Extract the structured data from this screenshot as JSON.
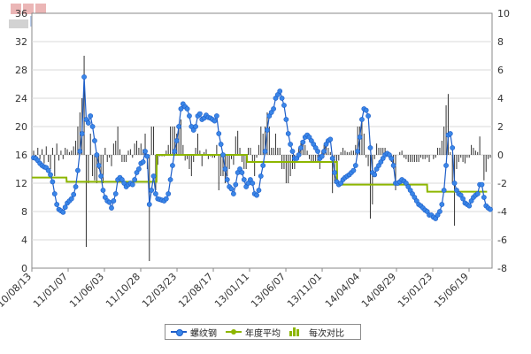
{
  "colors": {
    "price_line": "#1e5ec8",
    "price_marker": "#3a86e8",
    "avg_line": "#8db600",
    "diff_bar": "#333333",
    "grid": "#d9d9d9",
    "axis": "#888888"
  },
  "legend": {
    "price": "螺纹钢",
    "avg": "年度平均",
    "diff": "每次对比"
  },
  "chart_data": {
    "type": "line",
    "grid": true,
    "legend_position": "bottom",
    "y_left": {
      "range": [
        0,
        36
      ],
      "ticks": [
        "0",
        "4",
        "8",
        "12",
        "16",
        "20",
        "24",
        "28",
        "32",
        "36"
      ]
    },
    "y_right": {
      "range": [
        -8,
        10
      ],
      "ticks": [
        "-8",
        "-6",
        "-4",
        "-2",
        "0",
        "2",
        "4",
        "6",
        "8",
        "10"
      ]
    },
    "x_ticks": [
      "10/08/13",
      "11/01/07",
      "11/06/03",
      "11/10/28",
      "12/03/23",
      "12/08/17",
      "13/01/11",
      "13/06/07",
      "13/11/01",
      "14/04/04",
      "14/08/29",
      "15/01/23",
      "15/06/19"
    ],
    "series": [
      {
        "name": "螺纹钢",
        "axis": "left",
        "values": [
          15.6,
          15.5,
          15.2,
          14.8,
          14.5,
          14.3,
          14.2,
          13.8,
          13.2,
          12.2,
          10.5,
          9.0,
          8.3,
          8.1,
          7.9,
          8.6,
          9.2,
          9.5,
          9.8,
          10.4,
          11.5,
          13.8,
          16.5,
          19.0,
          27.0,
          21.0,
          20.5,
          21.5,
          20.0,
          18.0,
          16.0,
          14.5,
          13.0,
          11.0,
          10.0,
          9.5,
          9.3,
          8.5,
          9.5,
          10.5,
          12.5,
          12.8,
          12.5,
          12.0,
          11.5,
          11.8,
          12.0,
          11.8,
          12.5,
          13.5,
          14.0,
          14.8,
          15.0,
          16.5,
          15.8,
          9.0,
          11.0,
          13.0,
          10.5,
          9.8,
          9.7,
          9.6,
          9.5,
          9.8,
          10.5,
          12.5,
          14.5,
          16.5,
          18.0,
          20.0,
          22.5,
          23.2,
          22.8,
          22.5,
          21.5,
          20.0,
          19.5,
          20.0,
          21.5,
          21.8,
          21.0,
          21.2,
          21.6,
          21.3,
          21.2,
          21.0,
          20.8,
          21.5,
          19.0,
          17.5,
          16.0,
          14.0,
          12.5,
          11.5,
          11.2,
          10.5,
          11.8,
          13.5,
          14.0,
          13.5,
          12.5,
          11.5,
          12.0,
          12.5,
          12.0,
          10.5,
          10.3,
          11.0,
          13.0,
          14.5,
          16.5,
          19.5,
          21.5,
          22.0,
          22.5,
          24.0,
          24.5,
          25.0,
          24.0,
          23.0,
          21.0,
          19.0,
          17.5,
          16.5,
          15.5,
          15.5,
          16.0,
          17.0,
          17.8,
          18.5,
          18.8,
          18.5,
          18.0,
          17.5,
          17.0,
          16.5,
          15.5,
          15.8,
          16.5,
          17.5,
          18.0,
          18.2,
          15.5,
          13.5,
          12.2,
          11.8,
          12.0,
          12.5,
          12.8,
          13.0,
          13.2,
          13.5,
          13.8,
          14.5,
          16.5,
          18.5,
          21.0,
          22.5,
          22.3,
          21.5,
          17.0,
          13.5,
          13.2,
          14.0,
          14.5,
          15.0,
          15.5,
          16.0,
          16.2,
          16.0,
          15.5,
          14.5,
          12.0,
          12.0,
          12.2,
          12.5,
          12.3,
          12.0,
          11.5,
          11.0,
          10.5,
          10.0,
          9.5,
          9.0,
          8.8,
          8.5,
          8.2,
          8.0,
          7.5,
          7.5,
          7.2,
          7.0,
          7.5,
          8.0,
          9.0,
          11.0,
          14.5,
          18.8,
          19.0,
          17.0,
          12.0,
          11.0,
          10.5,
          10.3,
          9.8,
          9.2,
          9.0,
          8.8,
          9.5,
          10.0,
          10.3,
          10.5,
          11.8,
          11.8,
          10.0,
          8.8,
          8.5,
          8.3
        ]
      },
      {
        "name": "年度平均",
        "axis": "left",
        "steps": [
          {
            "x0": "10/08/13",
            "x1": "10/12/31",
            "value": 12.8
          },
          {
            "x0": "11/01/01",
            "x1": "11/12/31",
            "value": 12.2
          },
          {
            "x0": "12/01/01",
            "x1": "12/12/31",
            "value": 16.0
          },
          {
            "x0": "13/01/01",
            "x1": "13/12/31",
            "value": 15.0
          },
          {
            "x0": "14/01/01",
            "x1": "14/12/31",
            "value": 11.8
          },
          {
            "x0": "15/01/01",
            "x1": "15/08/31",
            "value": 10.8
          }
        ]
      },
      {
        "name": "每次对比",
        "axis": "right",
        "type": "bar",
        "values": [
          0.3,
          -0.4,
          0.5,
          -0.3,
          0.4,
          -0.6,
          0.6,
          -0.5,
          -1.0,
          0.5,
          -1.5,
          0.8,
          -0.4,
          0.3,
          -0.3,
          0.5,
          0.4,
          0.2,
          0.3,
          0.6,
          1.0,
          2.0,
          3.0,
          4.0,
          7.0,
          -6.5,
          -2.0,
          1.5,
          -1.5,
          -1.8,
          -2.0,
          -1.0,
          -1.5,
          -2.0,
          0.5,
          -0.5,
          -0.2,
          -0.8,
          0.8,
          1.0,
          2.0,
          0.4,
          -0.5,
          -0.5,
          -0.5,
          0.3,
          0.4,
          -0.2,
          0.8,
          1.0,
          0.5,
          0.8,
          0.4,
          1.5,
          -1.0,
          -7.5,
          2.0,
          2.0,
          -2.5,
          -0.7,
          -0.1,
          -0.1,
          -0.1,
          0.3,
          0.7,
          2.0,
          2.0,
          2.0,
          1.5,
          2.0,
          2.5,
          0.7,
          -0.4,
          -0.3,
          -1.0,
          -1.5,
          -0.5,
          0.5,
          1.5,
          0.3,
          -0.8,
          0.2,
          0.4,
          -0.3,
          -0.1,
          -0.2,
          -0.2,
          0.7,
          -2.5,
          -1.5,
          -1.5,
          -2.0,
          -1.5,
          -1.0,
          -0.3,
          -0.7,
          1.3,
          1.7,
          0.5,
          -0.5,
          -1.0,
          -1.0,
          0.5,
          0.5,
          -0.5,
          -1.5,
          -0.2,
          0.7,
          2.0,
          1.5,
          2.0,
          3.0,
          2.0,
          0.5,
          0.5,
          1.5,
          0.5,
          0.5,
          -1.0,
          -1.0,
          -2.0,
          -2.0,
          -1.5,
          -1.0,
          -1.0,
          0.0,
          0.5,
          1.0,
          0.8,
          0.7,
          0.3,
          -0.3,
          -0.5,
          -0.5,
          -0.5,
          -0.5,
          -1.0,
          0.3,
          0.7,
          1.0,
          0.5,
          0.2,
          -2.7,
          -2.0,
          -1.3,
          -0.4,
          0.2,
          0.5,
          0.3,
          0.2,
          0.2,
          0.3,
          0.3,
          0.7,
          2.0,
          2.0,
          2.5,
          1.5,
          -0.2,
          -0.8,
          -4.5,
          -3.5,
          -0.3,
          0.8,
          0.5,
          0.5,
          0.5,
          0.5,
          0.2,
          -0.2,
          -0.5,
          -1.0,
          -2.5,
          0.0,
          0.2,
          0.3,
          -0.2,
          -0.3,
          -0.5,
          -0.5,
          -0.5,
          -0.5,
          -0.5,
          -0.5,
          -0.2,
          -0.3,
          -0.3,
          -0.2,
          -0.5,
          0.0,
          -0.3,
          -0.2,
          0.5,
          0.5,
          1.0,
          2.0,
          3.5,
          4.3,
          0.2,
          -2.0,
          -5.0,
          -1.0,
          -0.5,
          -0.2,
          -0.5,
          -0.6,
          -0.2,
          -0.2,
          0.7,
          0.5,
          0.3,
          0.2,
          1.3,
          0.0,
          -1.8,
          -1.2,
          -0.3,
          -0.2
        ]
      }
    ]
  }
}
